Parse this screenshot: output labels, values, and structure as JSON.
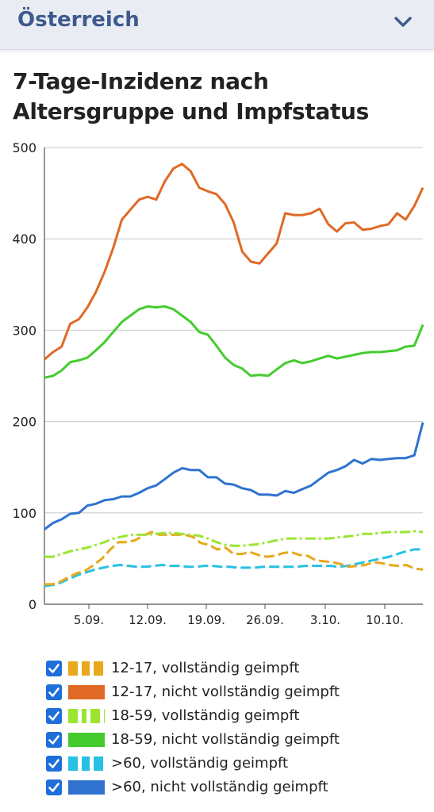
{
  "header": {
    "region": "Österreich",
    "dropdown_icon": "chevron-down-icon"
  },
  "title": "7-Tage-Inzidenz nach Altersgruppe und Impfstatus",
  "chart_data": {
    "type": "line",
    "title": "7-Tage-Inzidenz nach Altersgruppe und Impfstatus",
    "xlabel": "",
    "ylabel": "",
    "ylim": [
      0,
      500
    ],
    "yticks": [
      0,
      100,
      200,
      300,
      400,
      500
    ],
    "xticks": [
      "5.09.",
      "12.09.",
      "19.09.",
      "26.09.",
      "3.10.",
      "10.10."
    ],
    "grid": true,
    "legend_position": "bottom",
    "series": [
      {
        "name": "12-17, vollständig geimpft",
        "color": "#e8a91c",
        "dash": "dashed",
        "values": [
          22,
          22,
          25,
          30,
          34,
          37,
          43,
          50,
          60,
          68,
          68,
          70,
          75,
          79,
          76,
          76,
          76,
          76,
          74,
          67,
          65,
          60,
          62,
          55,
          55,
          57,
          54,
          52,
          53,
          56,
          57,
          54,
          53,
          48,
          47,
          46,
          44,
          41,
          42,
          43,
          46,
          45,
          43,
          42,
          43,
          39,
          38
        ]
      },
      {
        "name": "12-17, nicht vollständig geimpft",
        "color": "#e06a25",
        "dash": "solid",
        "values": [
          268,
          276,
          282,
          307,
          312,
          325,
          342,
          364,
          390,
          421,
          432,
          443,
          446,
          443,
          463,
          477,
          482,
          474,
          456,
          452,
          449,
          438,
          418,
          386,
          375,
          373,
          384,
          395,
          428,
          426,
          426,
          428,
          433,
          416,
          408,
          417,
          418,
          410,
          411,
          414,
          416,
          428,
          421,
          436,
          456
        ]
      },
      {
        "name": "18-59, vollständig geimpft",
        "color": "#9be531",
        "dash": "dashdot",
        "values": [
          52,
          52,
          55,
          58,
          60,
          62,
          65,
          68,
          72,
          74,
          76,
          76,
          76,
          77,
          78,
          78,
          77,
          76,
          75,
          72,
          68,
          65,
          64,
          64,
          65,
          66,
          68,
          70,
          72,
          72,
          72,
          72,
          72,
          72,
          73,
          74,
          75,
          77,
          77,
          78,
          79,
          79,
          79,
          80,
          79
        ]
      },
      {
        "name": "18-59, nicht vollständig geimpft",
        "color": "#44cc2e",
        "dash": "solid",
        "values": [
          248,
          250,
          256,
          265,
          267,
          270,
          278,
          287,
          298,
          309,
          316,
          323,
          326,
          325,
          326,
          323,
          316,
          309,
          298,
          295,
          283,
          270,
          262,
          258,
          250,
          251,
          250,
          257,
          264,
          267,
          264,
          266,
          269,
          272,
          269,
          271,
          273,
          275,
          276,
          276,
          277,
          278,
          282,
          283,
          306
        ]
      },
      {
        "name": ">60, vollständig geimpft",
        "color": "#27c1e3",
        "dash": "dashed",
        "values": [
          20,
          21,
          24,
          28,
          32,
          35,
          38,
          40,
          42,
          43,
          42,
          41,
          41,
          42,
          43,
          42,
          42,
          41,
          41,
          42,
          42,
          41,
          41,
          40,
          40,
          40,
          41,
          41,
          41,
          41,
          41,
          42,
          42,
          42,
          42,
          41,
          42,
          44,
          46,
          48,
          50,
          52,
          55,
          58,
          60,
          60
        ]
      },
      {
        "name": ">60, nicht vollständig geimpft",
        "color": "#2f73cf",
        "dash": "solid",
        "values": [
          82,
          89,
          93,
          99,
          100,
          108,
          110,
          114,
          115,
          118,
          118,
          122,
          127,
          130,
          137,
          144,
          149,
          147,
          147,
          139,
          139,
          132,
          131,
          127,
          125,
          120,
          120,
          119,
          124,
          122,
          126,
          130,
          137,
          144,
          147,
          151,
          158,
          154,
          159,
          158,
          159,
          160,
          160,
          163,
          199
        ]
      }
    ]
  }
}
